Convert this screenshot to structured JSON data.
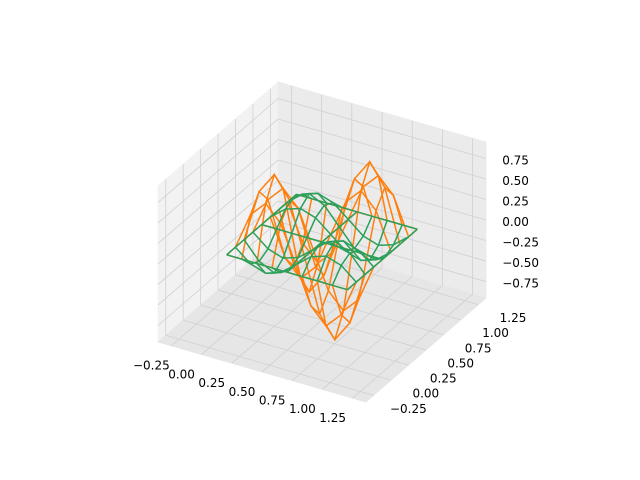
{
  "chart_data": {
    "type": "wireframe3d",
    "x": [
      0,
      0.125,
      0.25,
      0.375,
      0.5,
      0.625,
      0.75,
      0.875,
      1
    ],
    "y": [
      0,
      0.125,
      0.25,
      0.375,
      0.5,
      0.625,
      0.75,
      0.875,
      1
    ],
    "series": [
      {
        "color": "#ff7f0e",
        "z": [
          [
            0,
            0,
            0,
            0,
            0,
            0,
            0,
            0,
            0
          ],
          [
            0,
            0.45,
            0.64,
            0.45,
            0,
            -0.45,
            -0.64,
            -0.45,
            0
          ],
          [
            0,
            0.64,
            0.9,
            0.64,
            0,
            -0.64,
            -0.9,
            -0.64,
            0
          ],
          [
            0,
            0.45,
            0.64,
            0.45,
            0,
            -0.45,
            -0.64,
            -0.45,
            0
          ],
          [
            0,
            0,
            0,
            0,
            0,
            0,
            0,
            0,
            0
          ],
          [
            0,
            -0.45,
            -0.64,
            -0.45,
            0,
            0.45,
            0.64,
            0.45,
            0
          ],
          [
            0,
            -0.64,
            -0.9,
            -0.64,
            0,
            0.64,
            0.9,
            0.64,
            0
          ],
          [
            0,
            -0.45,
            -0.64,
            -0.45,
            0,
            0.45,
            0.64,
            0.45,
            0
          ],
          [
            0,
            0,
            0,
            0,
            0,
            0,
            0,
            0,
            0
          ]
        ]
      },
      {
        "color": "#2ca05a",
        "z": [
          [
            0,
            0,
            0,
            0,
            0,
            0,
            0,
            0,
            0
          ],
          [
            0,
            -0.15,
            -0.21,
            -0.15,
            0,
            0.15,
            0.21,
            0.15,
            0
          ],
          [
            0,
            -0.21,
            -0.3,
            -0.21,
            0,
            0.21,
            0.3,
            0.21,
            0
          ],
          [
            0,
            -0.15,
            -0.21,
            -0.15,
            0,
            0.15,
            0.21,
            0.15,
            0
          ],
          [
            0,
            0,
            0,
            0,
            0,
            0,
            0,
            0,
            0
          ],
          [
            0,
            0.15,
            0.21,
            0.15,
            0,
            -0.15,
            -0.21,
            -0.15,
            0
          ],
          [
            0,
            0.21,
            0.3,
            0.21,
            0,
            -0.21,
            -0.3,
            -0.21,
            0
          ],
          [
            0,
            0.15,
            0.21,
            0.15,
            0,
            -0.15,
            -0.21,
            -0.15,
            0
          ],
          [
            0,
            0,
            0,
            0,
            0,
            0,
            0,
            0,
            0
          ]
        ]
      }
    ],
    "xlim": [
      -0.36,
      1.36
    ],
    "ylim": [
      -0.36,
      1.36
    ],
    "zlim": [
      -0.95,
      0.95
    ],
    "xticks": [
      {
        "value": -0.25,
        "label": "−0.25"
      },
      {
        "value": 0,
        "label": "0.00"
      },
      {
        "value": 0.25,
        "label": "0.25"
      },
      {
        "value": 0.5,
        "label": "0.50"
      },
      {
        "value": 0.75,
        "label": "0.75"
      },
      {
        "value": 1,
        "label": "1.00"
      },
      {
        "value": 1.25,
        "label": "1.25"
      }
    ],
    "yticks": [
      {
        "value": -0.25,
        "label": "−0.25"
      },
      {
        "value": 0,
        "label": "0.00"
      },
      {
        "value": 0.25,
        "label": "0.25"
      },
      {
        "value": 0.5,
        "label": "0.50"
      },
      {
        "value": 0.75,
        "label": "0.75"
      },
      {
        "value": 1,
        "label": "1.00"
      },
      {
        "value": 1.25,
        "label": "1.25"
      }
    ],
    "zticks": [
      {
        "value": -0.75,
        "label": "−0.75"
      },
      {
        "value": -0.5,
        "label": "−0.50"
      },
      {
        "value": -0.25,
        "label": "−0.25"
      },
      {
        "value": 0,
        "label": "0.00"
      },
      {
        "value": 0.25,
        "label": "0.25"
      },
      {
        "value": 0.5,
        "label": "0.50"
      },
      {
        "value": 0.75,
        "label": "0.75"
      }
    ],
    "grid": true
  }
}
